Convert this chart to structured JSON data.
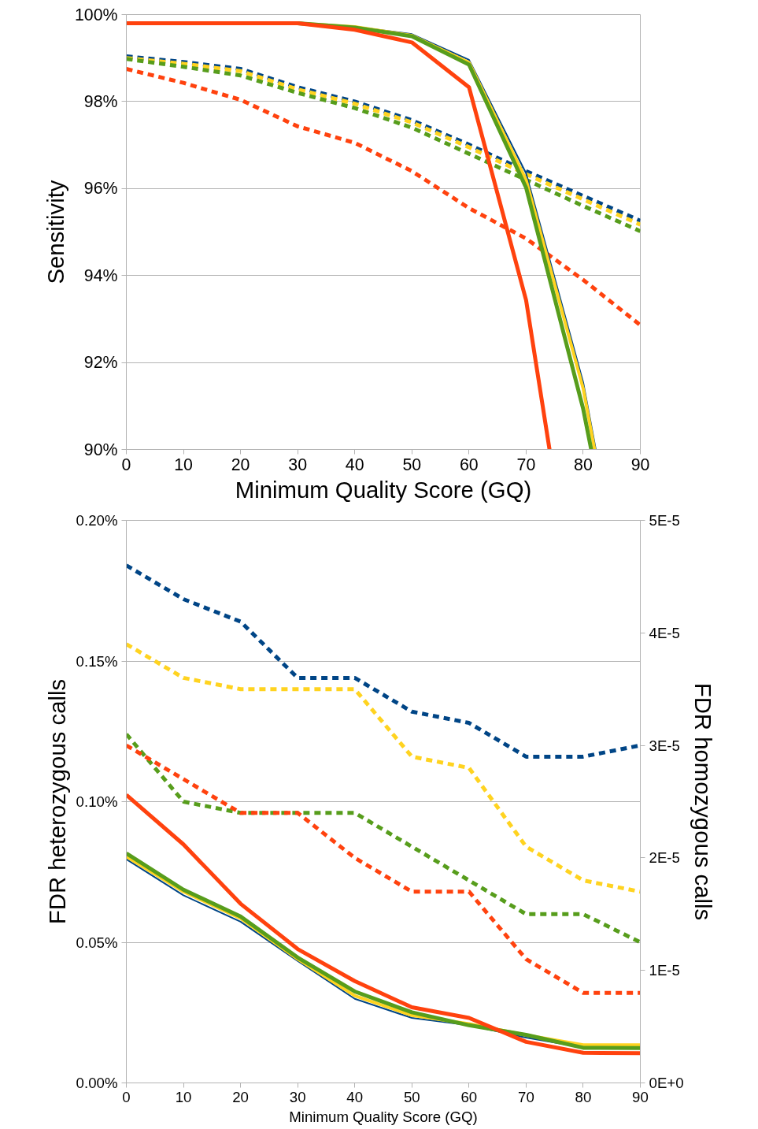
{
  "chart_data": [
    {
      "type": "line",
      "x": [
        0,
        10,
        20,
        30,
        40,
        50,
        60,
        70,
        80,
        90
      ],
      "xlim": [
        0,
        90
      ],
      "xticks": [
        0,
        10,
        20,
        30,
        40,
        50,
        60,
        70,
        80,
        90
      ],
      "ylim": [
        90,
        100
      ],
      "yticks": [
        {
          "value": 90,
          "label": "90%"
        },
        {
          "value": 92,
          "label": "92%"
        },
        {
          "value": 94,
          "label": "94%"
        },
        {
          "value": 96,
          "label": "96%"
        },
        {
          "value": 98,
          "label": "98%"
        },
        {
          "value": 100,
          "label": "100%"
        }
      ],
      "xlabel": "Minimum Quality Score (GQ)",
      "ylabel": "Sensitivity",
      "grid": "y",
      "marker": "none",
      "series": [
        {
          "color": "#004586",
          "line_style": "dashed",
          "values": [
            99.04,
            98.91,
            98.75,
            98.33,
            98.0,
            97.57,
            97.01,
            96.4,
            95.83,
            95.26
          ]
        },
        {
          "color": "#ffd320",
          "line_style": "dashed",
          "values": [
            99.0,
            98.87,
            98.7,
            98.28,
            97.95,
            97.52,
            96.95,
            96.33,
            95.75,
            95.17
          ]
        },
        {
          "color": "#579d1c",
          "line_style": "dashed",
          "values": [
            98.98,
            98.8,
            98.6,
            98.2,
            97.85,
            97.4,
            96.8,
            96.2,
            95.6,
            95.02
          ]
        },
        {
          "color": "#ff420e",
          "line_style": "dashed",
          "values": [
            98.75,
            98.43,
            98.04,
            97.43,
            97.05,
            96.4,
            95.55,
            94.85,
            93.9,
            92.86
          ]
        },
        {
          "color": "#004586",
          "line_style": "solid",
          "x": [
            40,
            50,
            60,
            70,
            80,
            82.2
          ],
          "values": [
            99.72,
            99.55,
            98.96,
            96.35,
            91.54,
            90
          ]
        },
        {
          "color": "#ffd320",
          "line_style": "solid",
          "x": [
            30,
            40,
            50,
            60,
            70,
            80,
            82.0
          ],
          "values": [
            99.8,
            99.72,
            99.52,
            98.9,
            96.2,
            91.4,
            90
          ]
        },
        {
          "color": "#579d1c",
          "line_style": "solid",
          "x": [
            30,
            40,
            50,
            60,
            70,
            80,
            81.4
          ],
          "values": [
            99.8,
            99.7,
            99.5,
            98.85,
            96.02,
            90.93,
            90
          ]
        },
        {
          "color": "#ff420e",
          "line_style": "solid",
          "x": [
            0,
            10,
            20,
            30,
            40,
            50,
            60,
            70,
            74.1
          ],
          "values": [
            99.8,
            99.8,
            99.8,
            99.8,
            99.65,
            99.36,
            98.33,
            93.43,
            90
          ]
        }
      ]
    },
    {
      "type": "line",
      "x": [
        0,
        10,
        20,
        30,
        40,
        50,
        60,
        70,
        80,
        90
      ],
      "xlim": [
        0,
        90
      ],
      "xticks": [
        0,
        10,
        20,
        30,
        40,
        50,
        60,
        70,
        80,
        90
      ],
      "ylim": [
        0,
        0.2
      ],
      "yticks": [
        {
          "value": 0,
          "label": "0.00%"
        },
        {
          "value": 0.05,
          "label": "0.05%"
        },
        {
          "value": 0.1,
          "label": "0.10%"
        },
        {
          "value": 0.15,
          "label": "0.15%"
        },
        {
          "value": 0.2,
          "label": "0.20%"
        }
      ],
      "y2lim": [
        0,
        5e-05
      ],
      "y2ticks": [
        {
          "value": 0,
          "label": "0E+0"
        },
        {
          "value": 1e-05,
          "label": "1E-5"
        },
        {
          "value": 2e-05,
          "label": "2E-5"
        },
        {
          "value": 3e-05,
          "label": "3E-5"
        },
        {
          "value": 4e-05,
          "label": "4E-5"
        },
        {
          "value": 5e-05,
          "label": "5E-5"
        }
      ],
      "xlabel": "Minimum Quality Score (GQ)",
      "ylabel": "FDR heterozygous calls",
      "y2label": "FDR homozygous calls",
      "grid": "y",
      "marker": "none",
      "series": [
        {
          "color": "#004586",
          "line_style": "dashed",
          "axis": "y2",
          "values": [
            4.6e-05,
            4.3e-05,
            4.1e-05,
            3.6e-05,
            3.6e-05,
            3.3e-05,
            3.2e-05,
            2.9e-05,
            2.9e-05,
            3e-05
          ]
        },
        {
          "color": "#ffd320",
          "line_style": "dashed",
          "axis": "y2",
          "values": [
            3.9e-05,
            3.6e-05,
            3.5e-05,
            3.5e-05,
            3.5e-05,
            2.9e-05,
            2.8e-05,
            2.1e-05,
            1.8e-05,
            1.7e-05
          ]
        },
        {
          "color": "#579d1c",
          "line_style": "dashed",
          "axis": "y2",
          "values": [
            3.1e-05,
            2.5e-05,
            2.4e-05,
            2.4e-05,
            2.4e-05,
            2.1e-05,
            1.8e-05,
            1.5e-05,
            1.5e-05,
            1.25e-05
          ]
        },
        {
          "color": "#ff420e",
          "line_style": "dashed",
          "axis": "y2",
          "values": [
            3e-05,
            2.7e-05,
            2.4e-05,
            2.4e-05,
            2e-05,
            1.7e-05,
            1.7e-05,
            1.1e-05,
            8e-06,
            8e-06
          ]
        },
        {
          "color": "#004586",
          "line_style": "solid",
          "values": [
            0.0795,
            0.0667,
            0.0573,
            0.0434,
            0.0299,
            0.0231,
            0.0205,
            0.0161,
            0.0126,
            0.0126
          ]
        },
        {
          "color": "#ffd320",
          "line_style": "solid",
          "values": [
            0.0805,
            0.068,
            0.0585,
            0.044,
            0.031,
            0.024,
            0.021,
            0.017,
            0.0135,
            0.0135
          ]
        },
        {
          "color": "#579d1c",
          "line_style": "solid",
          "values": [
            0.0816,
            0.0687,
            0.0592,
            0.0446,
            0.0325,
            0.0251,
            0.0205,
            0.0171,
            0.0125,
            0.0124
          ]
        },
        {
          "color": "#ff420e",
          "line_style": "solid",
          "values": [
            0.1024,
            0.0848,
            0.0637,
            0.0476,
            0.0362,
            0.0269,
            0.0231,
            0.0146,
            0.0107,
            0.0106
          ]
        }
      ]
    }
  ]
}
